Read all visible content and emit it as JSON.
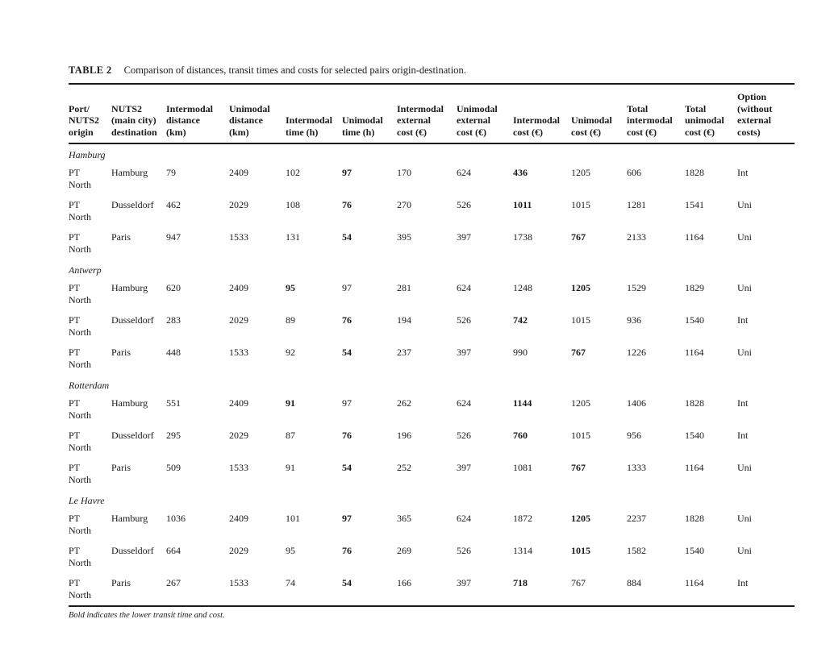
{
  "page": {
    "title_label": "TABLE 2",
    "title_text": "Comparison of distances, transit times and costs for selected pairs origin-destination.",
    "footnote": "Bold indicates the lower transit time and cost."
  },
  "table": {
    "columns": [
      "Port/\nNUTS2\norigin",
      "NUTS2\n(main city)\ndestination",
      "Intermodal\ndistance\n(km)",
      "Unimodal\ndistance\n(km)",
      "Intermodal\ntime (h)",
      "Unimodal\ntime (h)",
      "Intermodal\nexternal\ncost (€)",
      "Unimodal\nexternal\ncost (€)",
      "Intermodal\ncost (€)",
      "Unimodal\ncost (€)",
      "Total\nintermodal\ncost (€)",
      "Total\nunimodal\ncost (€)",
      "Option\n(without\nexternal\ncosts)"
    ],
    "origin_label": "PT\nNorth",
    "sections": [
      {
        "name": "Hamburg",
        "rows": [
          {
            "cells": [
              "Hamburg",
              "79",
              "2409",
              "102",
              "97",
              "170",
              "624",
              "436",
              "1205",
              "606",
              "1828",
              "Int"
            ],
            "bold": [
              4,
              7
            ]
          },
          {
            "cells": [
              "Dusseldorf",
              "462",
              "2029",
              "108",
              "76",
              "270",
              "526",
              "1011",
              "1015",
              "1281",
              "1541",
              "Uni"
            ],
            "bold": [
              4,
              7
            ]
          },
          {
            "cells": [
              "Paris",
              "947",
              "1533",
              "131",
              "54",
              "395",
              "397",
              "1738",
              "767",
              "2133",
              "1164",
              "Uni"
            ],
            "bold": [
              4,
              8
            ]
          }
        ]
      },
      {
        "name": "Antwerp",
        "rows": [
          {
            "cells": [
              "Hamburg",
              "620",
              "2409",
              "95",
              "97",
              "281",
              "624",
              "1248",
              "1205",
              "1529",
              "1829",
              "Uni"
            ],
            "bold": [
              3,
              8
            ]
          },
          {
            "cells": [
              "Dusseldorf",
              "283",
              "2029",
              "89",
              "76",
              "194",
              "526",
              "742",
              "1015",
              "936",
              "1540",
              "Int"
            ],
            "bold": [
              4,
              7
            ]
          },
          {
            "cells": [
              "Paris",
              "448",
              "1533",
              "92",
              "54",
              "237",
              "397",
              "990",
              "767",
              "1226",
              "1164",
              "Uni"
            ],
            "bold": [
              4,
              8
            ]
          }
        ]
      },
      {
        "name": "Rotterdam",
        "rows": [
          {
            "cells": [
              "Hamburg",
              "551",
              "2409",
              "91",
              "97",
              "262",
              "624",
              "1144",
              "1205",
              "1406",
              "1828",
              "Int"
            ],
            "bold": [
              3,
              7
            ]
          },
          {
            "cells": [
              "Dusseldorf",
              "295",
              "2029",
              "87",
              "76",
              "196",
              "526",
              "760",
              "1015",
              "956",
              "1540",
              "Int"
            ],
            "bold": [
              4,
              7
            ]
          },
          {
            "cells": [
              "Paris",
              "509",
              "1533",
              "91",
              "54",
              "252",
              "397",
              "1081",
              "767",
              "1333",
              "1164",
              "Uni"
            ],
            "bold": [
              4,
              8
            ]
          }
        ]
      },
      {
        "name": "Le Havre",
        "rows": [
          {
            "cells": [
              "Hamburg",
              "1036",
              "2409",
              "101",
              "97",
              "365",
              "624",
              "1872",
              "1205",
              "2237",
              "1828",
              "Uni"
            ],
            "bold": [
              4,
              8
            ]
          },
          {
            "cells": [
              "Dusseldorf",
              "664",
              "2029",
              "95",
              "76",
              "269",
              "526",
              "1314",
              "1015",
              "1582",
              "1540",
              "Uni"
            ],
            "bold": [
              4,
              8
            ]
          },
          {
            "cells": [
              "Paris",
              "267",
              "1533",
              "74",
              "54",
              "166",
              "397",
              "718",
              "767",
              "884",
              "1164",
              "Int"
            ],
            "bold": [
              4,
              7
            ]
          }
        ]
      }
    ]
  }
}
